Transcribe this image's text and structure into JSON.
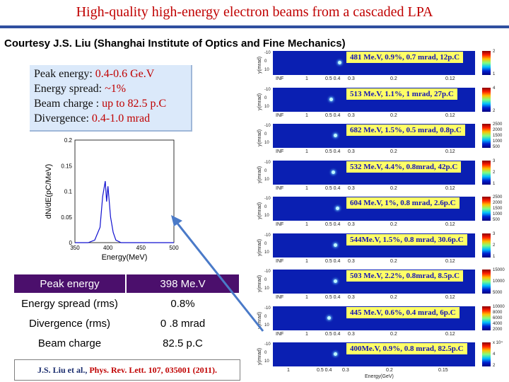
{
  "title": "High-quality high-energy electron beams from a cascaded LPA",
  "courtesy": "Courtesy J.S. Liu (Shanghai Institute of Optics and Fine Mechanics)",
  "specs": [
    {
      "label": "Peak energy:",
      "value": "0.4-0.6 Ge.V"
    },
    {
      "label": "Energy spread:",
      "value": "~1%"
    },
    {
      "label": "Beam charge :",
      "value": "up to 82.5 p.C"
    },
    {
      "label": "Divergence:",
      "value": "0.4-1.0 mrad"
    }
  ],
  "spectrum_plot": {
    "ylabel": "dN/dE(pC/MeV)",
    "xlabel": "Energy(MeV)",
    "x_ticks": [
      "350",
      "400",
      "450",
      "500"
    ],
    "y_ticks": [
      "0",
      "0.05",
      "0.1",
      "0.15",
      "0.2"
    ]
  },
  "chart_data": {
    "type": "line",
    "xlabel": "Energy(MeV)",
    "ylabel": "dN/dE(pC/MeV)",
    "xlim": [
      350,
      500
    ],
    "ylim": [
      0,
      0.2
    ],
    "x": [
      350,
      370,
      380,
      388,
      392,
      396,
      398,
      400,
      404,
      408,
      412,
      420,
      440,
      460,
      500
    ],
    "y": [
      0,
      0,
      0.005,
      0.03,
      0.09,
      0.12,
      0.08,
      0.11,
      0.05,
      0.02,
      0.005,
      0,
      0,
      0,
      0
    ]
  },
  "params_table": {
    "rows": [
      {
        "name": "Peak energy",
        "value": "398 Me.V"
      },
      {
        "name": "Energy spread (rms)",
        "value": "0.8%"
      },
      {
        "name": "Divergence (rms)",
        "value": "0 .8 mrad"
      },
      {
        "name": "Beam charge",
        "value": "82.5 p.C"
      }
    ]
  },
  "reference": {
    "authors": "J.S. Liu et al., ",
    "journal": "Phys. Rev. Lett. 107, 035001 (2011)."
  },
  "panels": {
    "ylabel": "y(mrad)",
    "y_ticks": [
      "-10",
      "0",
      "10"
    ],
    "x_ticks": [
      "INF",
      "1",
      "0.5 0.4",
      "0.3",
      "0.2",
      "0.12"
    ],
    "items": [
      {
        "label": "481 Me.V, 0.9%, 0.7 mrad, 12p.C",
        "spot": 0.32,
        "cbar": [
          "2",
          "1"
        ]
      },
      {
        "label": "513 Me.V, 1.1%, 1 mrad, 27p.C",
        "spot": 0.28,
        "cbar": [
          "4",
          "2"
        ]
      },
      {
        "label": "682 Me.V, 1.5%, 0.5 mrad, 0.8p.C",
        "spot": 0.3,
        "cbar": [
          "2500",
          "2000",
          "1500",
          "1000",
          "500"
        ]
      },
      {
        "label": "532 Me.V, 4.4%, 0.8mrad, 42p.C",
        "spot": 0.29,
        "cbar": [
          "3",
          "2",
          "1"
        ]
      },
      {
        "label": "604 Me.V, 1%, 0.8 mrad, 2.6p.C",
        "spot": 0.31,
        "cbar": [
          "2500",
          "2000",
          "1500",
          "1000",
          "500"
        ]
      },
      {
        "label": "544Me.V, 1.5%, 0.8 mrad, 30.6p.C",
        "spot": 0.3,
        "cbar": [
          "3",
          "2",
          "1"
        ]
      },
      {
        "label": "503 Me.V, 2.2%, 0.8mrad, 8.5p.C",
        "spot": 0.3,
        "cbar": [
          "15000",
          "10000",
          "5000"
        ]
      },
      {
        "label": "445 Me.V, 0.6%, 0.4 mrad, 6p.C",
        "spot": 0.27,
        "cbar": [
          "10000",
          "8000",
          "6000",
          "4000",
          "2000"
        ]
      },
      {
        "label": "400Me.V, 0.9%, 0.8 mrad, 82.5p.C",
        "spot": 0.3,
        "cbar": [
          "x 10⁴",
          "4",
          "2"
        ]
      }
    ],
    "bottom_x_ticks": [
      "1",
      "0.5 0.4",
      "0.3",
      "0.2",
      "0.15"
    ],
    "bottom_xlabel": "Energy(GeV)"
  },
  "colors": {
    "title": "#c00000",
    "accent": "#2f4f9f",
    "table_header": "#4b0f6c",
    "label_bg": "#ffff66"
  }
}
